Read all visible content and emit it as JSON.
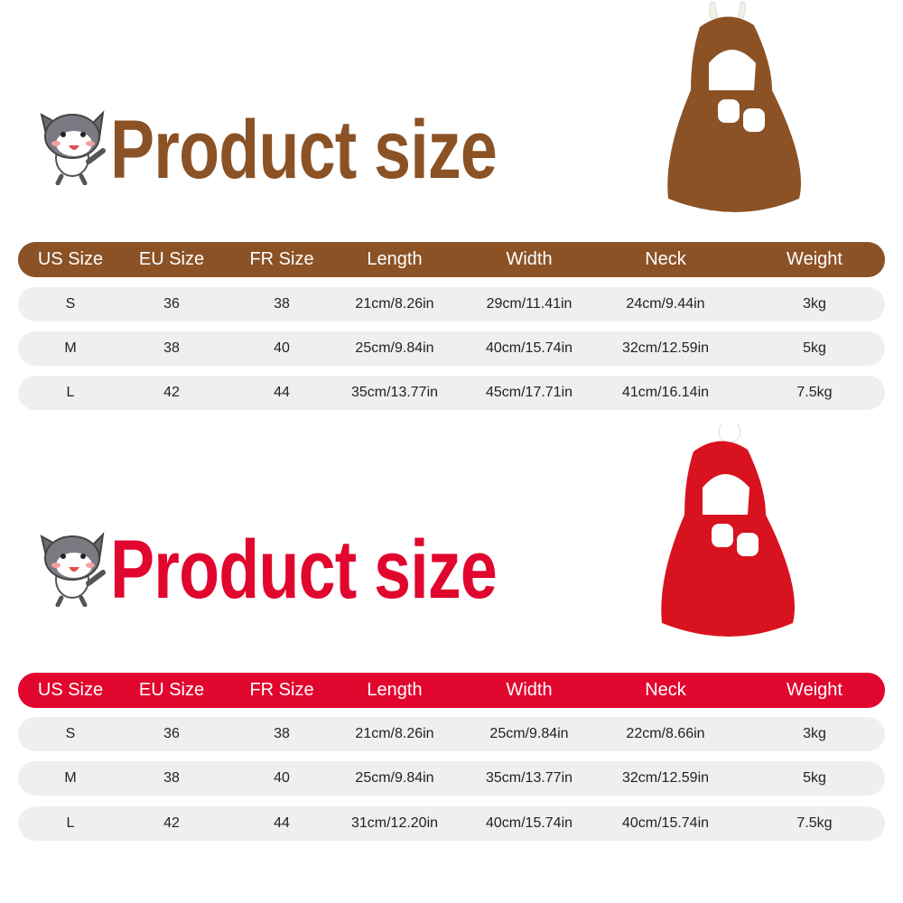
{
  "colors": {
    "brown": "#8b5226",
    "red": "#e1062e",
    "row_bg": "#efefef"
  },
  "columns": [
    "US Size",
    "EU Size",
    "FR Size",
    "Length",
    "Width",
    "Neck",
    "Weight"
  ],
  "sections": [
    {
      "title": "Product size",
      "color": "#8b5226",
      "rows": [
        [
          "S",
          "36",
          "38",
          "21cm/8.26in",
          "29cm/11.41in",
          "24cm/9.44in",
          "3kg"
        ],
        [
          "M",
          "38",
          "40",
          "25cm/9.84in",
          "40cm/15.74in",
          "32cm/12.59in",
          "5kg"
        ],
        [
          "L",
          "42",
          "44",
          "35cm/13.77in",
          "45cm/17.71in",
          "41cm/16.14in",
          "7.5kg"
        ]
      ]
    },
    {
      "title": "Product size",
      "color": "#e1062e",
      "rows": [
        [
          "S",
          "36",
          "38",
          "21cm/8.26in",
          "25cm/9.84in",
          "22cm/8.66in",
          "3kg"
        ],
        [
          "M",
          "38",
          "40",
          "25cm/9.84in",
          "35cm/13.77in",
          "32cm/12.59in",
          "5kg"
        ],
        [
          "L",
          "42",
          "44",
          "31cm/12.20in",
          "40cm/15.74in",
          "40cm/15.74in",
          "7.5kg"
        ]
      ]
    }
  ]
}
